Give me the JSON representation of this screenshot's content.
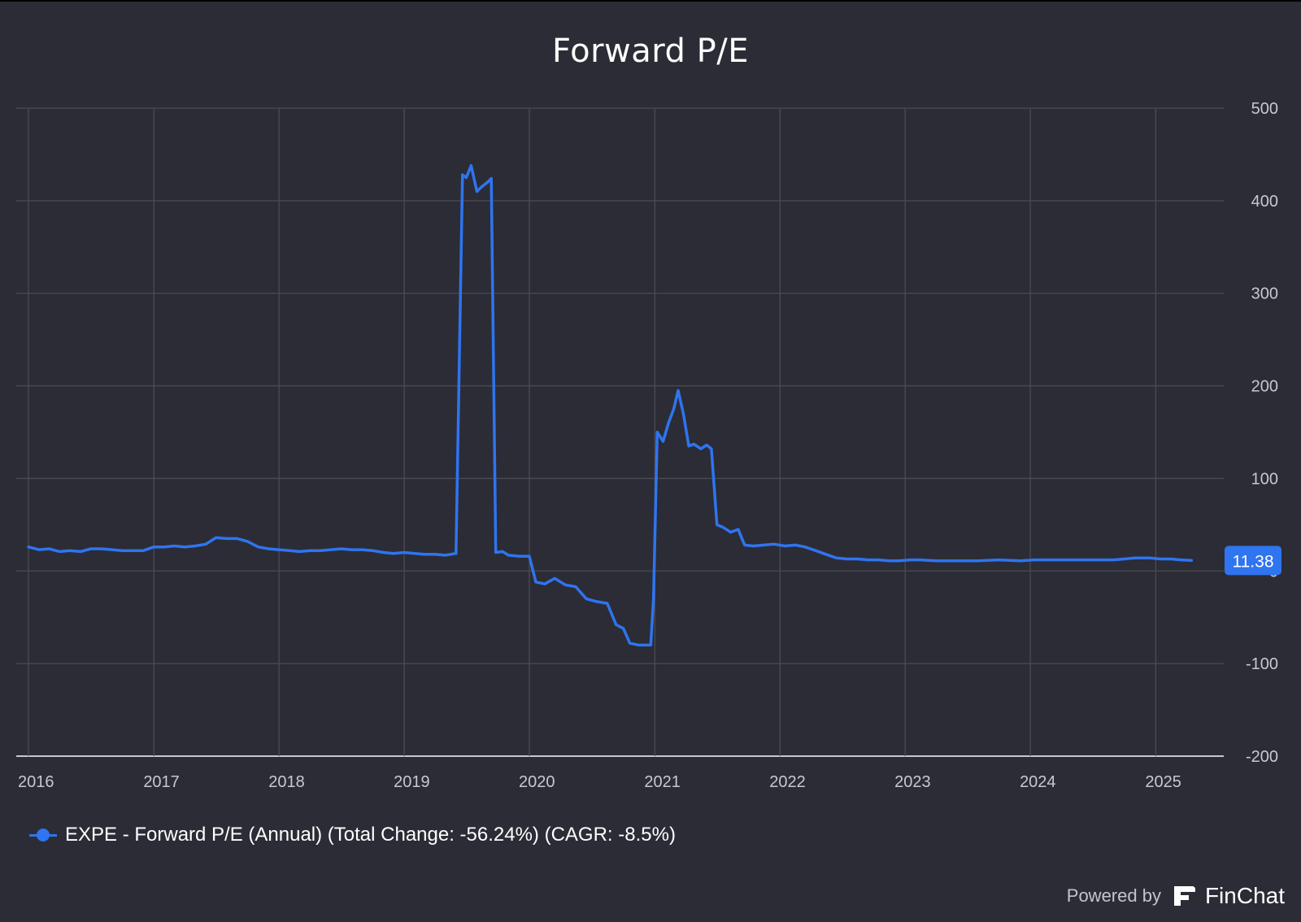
{
  "title": "Forward P/E",
  "chart_data": {
    "type": "line",
    "title": "Forward P/E",
    "xlabel": "",
    "ylabel": "",
    "x_tick_labels": [
      "2016",
      "2017",
      "2018",
      "2019",
      "2020",
      "2021",
      "2022",
      "2023",
      "2024",
      "2025"
    ],
    "y_tick_labels": [
      "500",
      "400",
      "300",
      "200",
      "100",
      "0",
      "-100",
      "-200"
    ],
    "ylim": [
      -200,
      500
    ],
    "xlim": [
      "2016-01-01",
      "2025-05-01"
    ],
    "grid": true,
    "legend_position": "bottom-left",
    "series": [
      {
        "name": "EXPE - Forward P/E (Annual) (Total Change: -56.24%) (CAGR: -8.5%)",
        "color": "#2f74f0",
        "last_value_label": "11.38",
        "points": [
          [
            "2016-01-01",
            26
          ],
          [
            "2016-02-01",
            23
          ],
          [
            "2016-03-01",
            24
          ],
          [
            "2016-04-01",
            21
          ],
          [
            "2016-05-01",
            22
          ],
          [
            "2016-06-01",
            21
          ],
          [
            "2016-07-01",
            24
          ],
          [
            "2016-08-01",
            24
          ],
          [
            "2016-09-01",
            23
          ],
          [
            "2016-10-01",
            22
          ],
          [
            "2016-11-01",
            22
          ],
          [
            "2016-12-01",
            22
          ],
          [
            "2017-01-01",
            26
          ],
          [
            "2017-02-01",
            26
          ],
          [
            "2017-03-01",
            27
          ],
          [
            "2017-04-01",
            26
          ],
          [
            "2017-05-01",
            27
          ],
          [
            "2017-06-01",
            29
          ],
          [
            "2017-07-01",
            36
          ],
          [
            "2017-08-01",
            35
          ],
          [
            "2017-09-01",
            35
          ],
          [
            "2017-10-01",
            32
          ],
          [
            "2017-11-01",
            26
          ],
          [
            "2017-12-01",
            24
          ],
          [
            "2018-01-01",
            23
          ],
          [
            "2018-02-01",
            22
          ],
          [
            "2018-03-01",
            21
          ],
          [
            "2018-04-01",
            22
          ],
          [
            "2018-05-01",
            22
          ],
          [
            "2018-06-01",
            23
          ],
          [
            "2018-07-01",
            24
          ],
          [
            "2018-08-01",
            23
          ],
          [
            "2018-09-01",
            23
          ],
          [
            "2018-10-01",
            22
          ],
          [
            "2018-11-01",
            20
          ],
          [
            "2018-12-01",
            19
          ],
          [
            "2019-01-01",
            20
          ],
          [
            "2019-02-01",
            19
          ],
          [
            "2019-03-01",
            18
          ],
          [
            "2019-04-01",
            18
          ],
          [
            "2019-05-01",
            17
          ],
          [
            "2019-06-01",
            19
          ],
          [
            "2019-06-20",
            428
          ],
          [
            "2019-07-01",
            425
          ],
          [
            "2019-07-15",
            438
          ],
          [
            "2019-08-01",
            410
          ],
          [
            "2019-08-15",
            415
          ],
          [
            "2019-09-01",
            420
          ],
          [
            "2019-09-12",
            424
          ],
          [
            "2019-09-25",
            20
          ],
          [
            "2019-10-15",
            21
          ],
          [
            "2019-11-01",
            17
          ],
          [
            "2019-12-01",
            16
          ],
          [
            "2020-01-01",
            16
          ],
          [
            "2020-01-20",
            -12
          ],
          [
            "2020-02-15",
            -14
          ],
          [
            "2020-03-15",
            -8
          ],
          [
            "2020-04-15",
            -15
          ],
          [
            "2020-05-15",
            -17
          ],
          [
            "2020-06-15",
            -30
          ],
          [
            "2020-07-15",
            -33
          ],
          [
            "2020-08-15",
            -35
          ],
          [
            "2020-09-10",
            -58
          ],
          [
            "2020-10-01",
            -62
          ],
          [
            "2020-10-20",
            -78
          ],
          [
            "2020-11-15",
            -80
          ],
          [
            "2020-12-20",
            -80
          ],
          [
            "2020-12-28",
            -30
          ],
          [
            "2021-01-08",
            150
          ],
          [
            "2021-01-25",
            140
          ],
          [
            "2021-02-10",
            160
          ],
          [
            "2021-02-25",
            175
          ],
          [
            "2021-03-10",
            195
          ],
          [
            "2021-03-25",
            170
          ],
          [
            "2021-04-10",
            135
          ],
          [
            "2021-04-25",
            137
          ],
          [
            "2021-05-15",
            132
          ],
          [
            "2021-06-01",
            136
          ],
          [
            "2021-06-15",
            132
          ],
          [
            "2021-07-01",
            50
          ],
          [
            "2021-07-20",
            47
          ],
          [
            "2021-08-10",
            42
          ],
          [
            "2021-09-01",
            45
          ],
          [
            "2021-09-20",
            28
          ],
          [
            "2021-10-15",
            27
          ],
          [
            "2021-11-15",
            28
          ],
          [
            "2021-12-15",
            29
          ],
          [
            "2022-01-15",
            27
          ],
          [
            "2022-02-15",
            28
          ],
          [
            "2022-03-15",
            26
          ],
          [
            "2022-04-15",
            22
          ],
          [
            "2022-05-15",
            18
          ],
          [
            "2022-06-15",
            14
          ],
          [
            "2022-07-15",
            13
          ],
          [
            "2022-08-15",
            13
          ],
          [
            "2022-09-15",
            12
          ],
          [
            "2022-10-15",
            12
          ],
          [
            "2022-11-15",
            11
          ],
          [
            "2022-12-15",
            11
          ],
          [
            "2023-01-15",
            12
          ],
          [
            "2023-02-15",
            12
          ],
          [
            "2023-04-01",
            11
          ],
          [
            "2023-06-01",
            11
          ],
          [
            "2023-08-01",
            11
          ],
          [
            "2023-10-01",
            12
          ],
          [
            "2023-12-01",
            11
          ],
          [
            "2024-01-15",
            12
          ],
          [
            "2024-03-01",
            12
          ],
          [
            "2024-05-01",
            12
          ],
          [
            "2024-07-01",
            12
          ],
          [
            "2024-09-01",
            12
          ],
          [
            "2024-11-01",
            14
          ],
          [
            "2024-12-15",
            14
          ],
          [
            "2025-01-15",
            13
          ],
          [
            "2025-02-15",
            13
          ],
          [
            "2025-03-15",
            12
          ],
          [
            "2025-04-15",
            11.38
          ]
        ]
      }
    ]
  },
  "footer": {
    "powered_by": "Powered by",
    "brand": "FinChat",
    "brand_icon": "finchat-logo-icon"
  }
}
